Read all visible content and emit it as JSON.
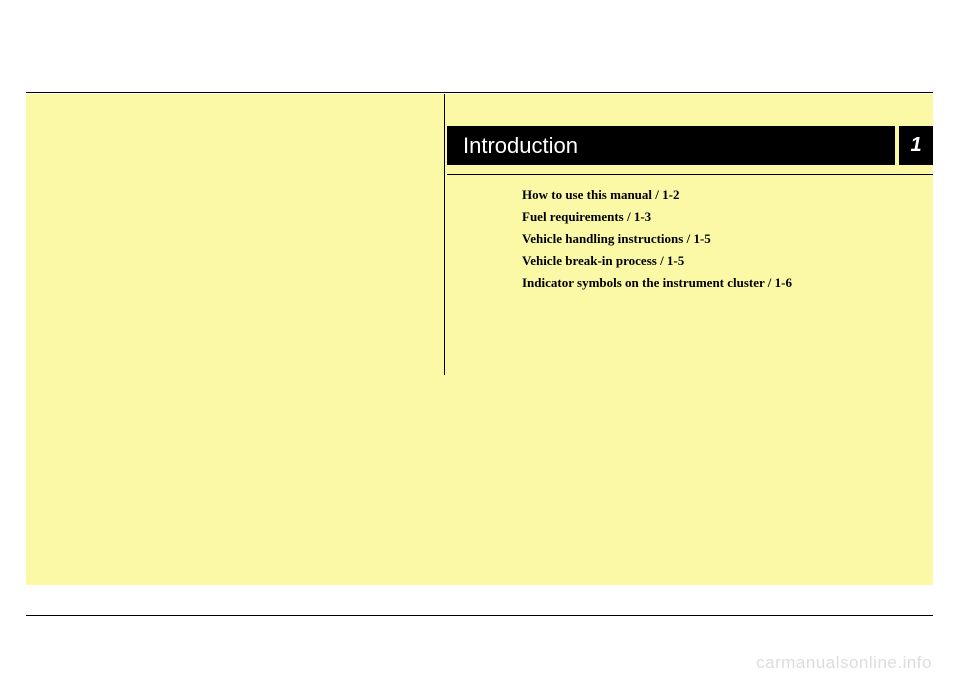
{
  "header": {
    "title": "Introduction",
    "chapter_number": "1",
    "bar_background": "#000000",
    "bar_text_color": "#ffffff"
  },
  "page": {
    "background": "#ffffff",
    "panel_background": "#fbf9a5",
    "rule_color": "#000000"
  },
  "toc": {
    "items": [
      "How to use this manual / 1-2",
      "Fuel requirements / 1-3",
      "Vehicle handling instructions / 1-5",
      "Vehicle break-in process / 1-5",
      "Indicator symbols on the instrument cluster / 1-6"
    ],
    "font_family": "Times New Roman",
    "font_size_pt": 10,
    "font_weight": "700",
    "text_color": "#000000"
  },
  "watermark": {
    "text": "carmanualsonline.info",
    "color": "#dddddd"
  }
}
